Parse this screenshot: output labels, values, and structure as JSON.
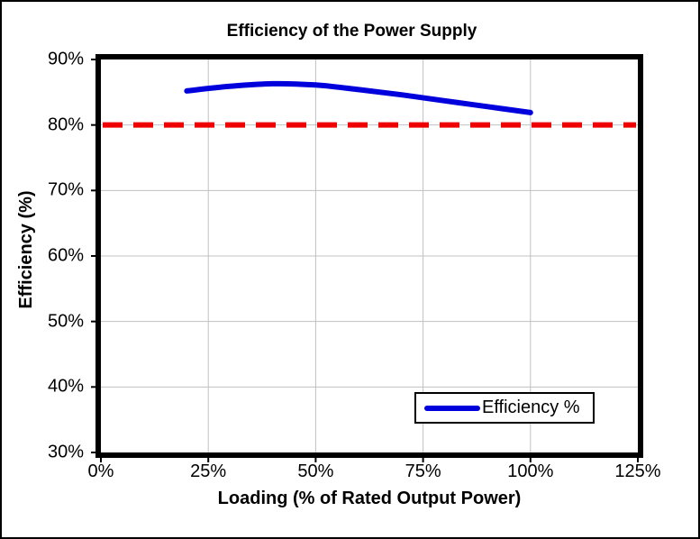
{
  "window": {
    "background": "#ffffff",
    "frame_border_color": "#000000"
  },
  "chart_data": {
    "type": "line",
    "title": "Efficiency of the Power Supply",
    "xlabel": "Loading (% of Rated Output Power)",
    "ylabel": "Efficiency (%)",
    "xlim": [
      0,
      125
    ],
    "ylim": [
      30,
      90
    ],
    "grid": true,
    "gridline_color": "#c0c0c0",
    "plot_border_color": "#000000",
    "x_ticks": {
      "values": [
        0,
        25,
        50,
        75,
        100,
        125
      ],
      "labels": [
        "0%",
        "25%",
        "50%",
        "75%",
        "100%",
        "125%"
      ]
    },
    "y_ticks": {
      "values": [
        30,
        40,
        50,
        60,
        70,
        80,
        90
      ],
      "labels": [
        "30%",
        "40%",
        "50%",
        "60%",
        "70%",
        "80%",
        "90%"
      ]
    },
    "series": [
      {
        "name": "Efficiency %",
        "style": "smooth-line",
        "color": "#0000dd",
        "line_width": 6,
        "x": [
          20,
          30,
          40,
          50,
          60,
          70,
          80,
          90,
          100
        ],
        "y": [
          85.2,
          85.9,
          86.3,
          86.1,
          85.4,
          84.6,
          83.7,
          82.8,
          81.9
        ]
      }
    ],
    "reference_line": {
      "y": 80,
      "style": "dashed",
      "color": "#ee0000",
      "line_width": 6,
      "dash": [
        22,
        12
      ]
    },
    "legend": {
      "position": "bottom-right",
      "entries": [
        {
          "label": "Efficiency %",
          "color": "#0000dd"
        }
      ]
    }
  }
}
